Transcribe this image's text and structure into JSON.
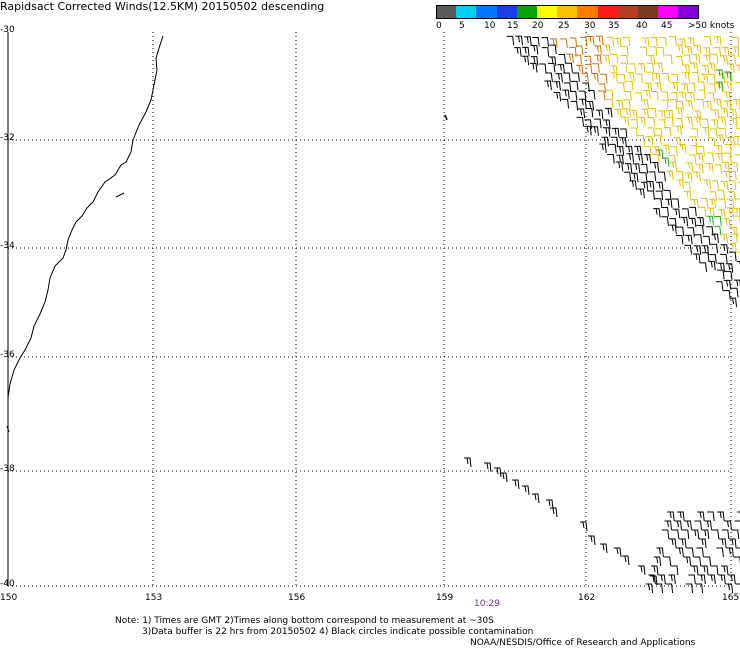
{
  "title": "Rapidsact Corrected Winds(12.5KM) 20150502 descending",
  "colors": {
    "scale": [
      "#5a5a5a",
      "#00cff5",
      "#0077ff",
      "#1c3ce8",
      "#0aa300",
      "#ffff00",
      "#ffbe00",
      "#ff7a00",
      "#ff1a1a",
      "#b83c1e",
      "#7a3a1e",
      "#ff00ff",
      "#8800d8"
    ],
    "barb_black": "#000000",
    "barb_yellow": "#e8c000",
    "barb_orange": "#d07000",
    "barb_green": "#22aa22",
    "time_label": "#7a2a9a"
  },
  "speed_scale": {
    "labels": [
      "0",
      "5",
      "10",
      "15",
      "20",
      "25",
      "30",
      "35",
      "40",
      "45",
      ">50 knots"
    ]
  },
  "axes": {
    "lat_labels": [
      "-30",
      "-32",
      "-34",
      "-36",
      "-38",
      "-40"
    ],
    "lon_labels": [
      "150",
      "153",
      "156",
      "159",
      "162",
      "165"
    ]
  },
  "time_label": "10:29",
  "notes": {
    "line1": "Note: 1) Times are GMT 2)Times along bottom correspond to measurement at ~30S",
    "line2": "3)Data buffer is 22 hrs from 20150502 4) Black circles indicate possible contamination",
    "line3": "NOAA/NESDIS/Office of Research and Applications"
  }
}
